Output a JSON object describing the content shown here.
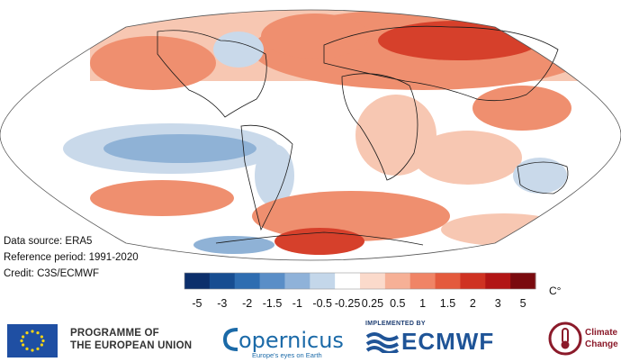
{
  "map": {
    "projection": "Robinson",
    "anomaly_colors": {
      "strong_warm": "#d6402b",
      "warm": "#ef8f6f",
      "mild_warm": "#f7c7b2",
      "neutral": "#ffffff",
      "mild_cool": "#c9d9ea",
      "cool": "#8fb2d6",
      "strong_cool": "#4f86bd"
    }
  },
  "source_notes": {
    "data_source": "Data source: ERA5",
    "reference_period": "Reference period: 1991-2020",
    "credit": "Credit: C3S/ECMWF"
  },
  "colorbar": {
    "colors": [
      "#0c2f6b",
      "#174d91",
      "#2e6db1",
      "#5a8ec7",
      "#8fb2d9",
      "#c4d7ea",
      "#ffffff",
      "#fbdacb",
      "#f6b096",
      "#f08466",
      "#e45a3d",
      "#cf3222",
      "#b21515",
      "#7a0a0e"
    ],
    "labels": [
      "-5",
      "-3",
      "-2",
      "-1.5",
      "-1",
      "-0.5",
      "-0.25",
      "0.25",
      "0.5",
      "1",
      "1.5",
      "2",
      "3",
      "5"
    ],
    "unit": "C°"
  },
  "footer": {
    "eu_line1": "PROGRAMME OF",
    "eu_line2": "THE EUROPEAN UNION",
    "copernicus": "opernicus",
    "copernicus_sub": "Europe's eyes on Earth",
    "ecmwf_implemented": "IMPLEMENTED BY",
    "ecmwf": "ECMWF",
    "climate_line1": "Climate",
    "climate_line2": "Change",
    "icons": [
      "eu-flag-icon",
      "copernicus-logo-icon",
      "ecmwf-waves-icon",
      "thermometer-icon"
    ]
  }
}
